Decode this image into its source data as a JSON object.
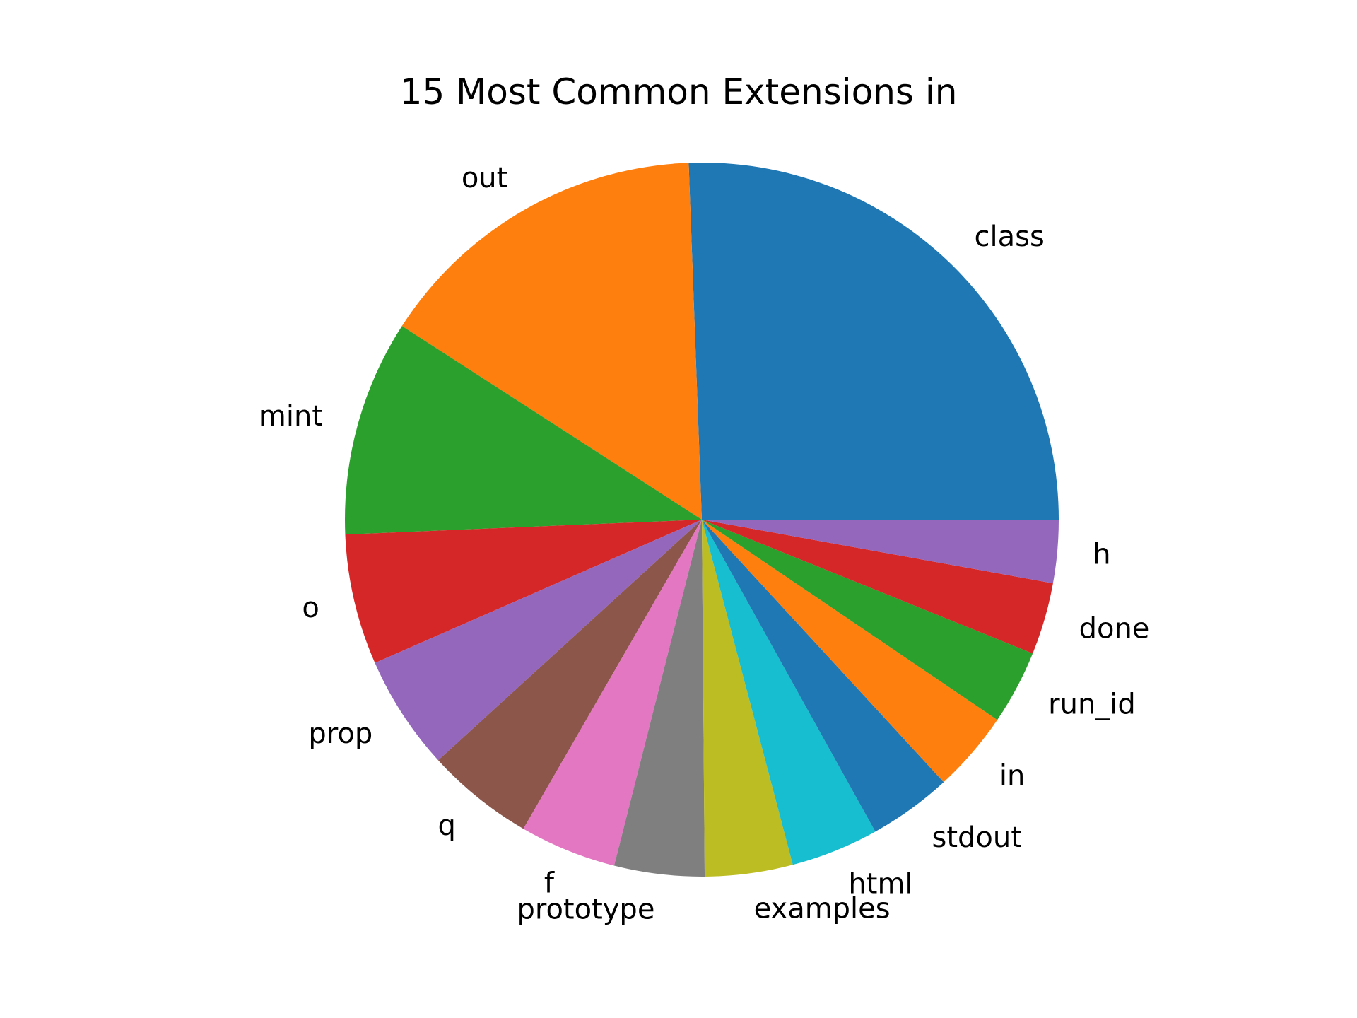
{
  "chart_data": {
    "type": "pie",
    "title": "15 Most Common Extensions in",
    "start_angle_deg": 0,
    "direction": "counterclockwise",
    "slices": [
      {
        "label": "class",
        "value": 25.1,
        "color": "#1f77b4"
      },
      {
        "label": "out",
        "value": 15.0,
        "color": "#ff7f0e"
      },
      {
        "label": "mint",
        "value": 9.6,
        "color": "#2ca02c"
      },
      {
        "label": "o",
        "value": 5.8,
        "color": "#d62728"
      },
      {
        "label": "prop",
        "value": 5.1,
        "color": "#9467bd"
      },
      {
        "label": "q",
        "value": 4.8,
        "color": "#8c564b"
      },
      {
        "label": "f",
        "value": 4.3,
        "color": "#e377c2"
      },
      {
        "label": "prototype",
        "value": 4.0,
        "color": "#7f7f7f"
      },
      {
        "label": "examples",
        "value": 3.9,
        "color": "#bcbd22"
      },
      {
        "label": "html",
        "value": 3.9,
        "color": "#17becf"
      },
      {
        "label": "stdout",
        "value": 3.7,
        "color": "#1f77b4"
      },
      {
        "label": "in",
        "value": 3.6,
        "color": "#ff7f0e"
      },
      {
        "label": "run_id",
        "value": 3.3,
        "color": "#2ca02c"
      },
      {
        "label": "done",
        "value": 3.2,
        "color": "#d62728"
      },
      {
        "label": "h",
        "value": 2.8,
        "color": "#9467bd"
      }
    ]
  }
}
